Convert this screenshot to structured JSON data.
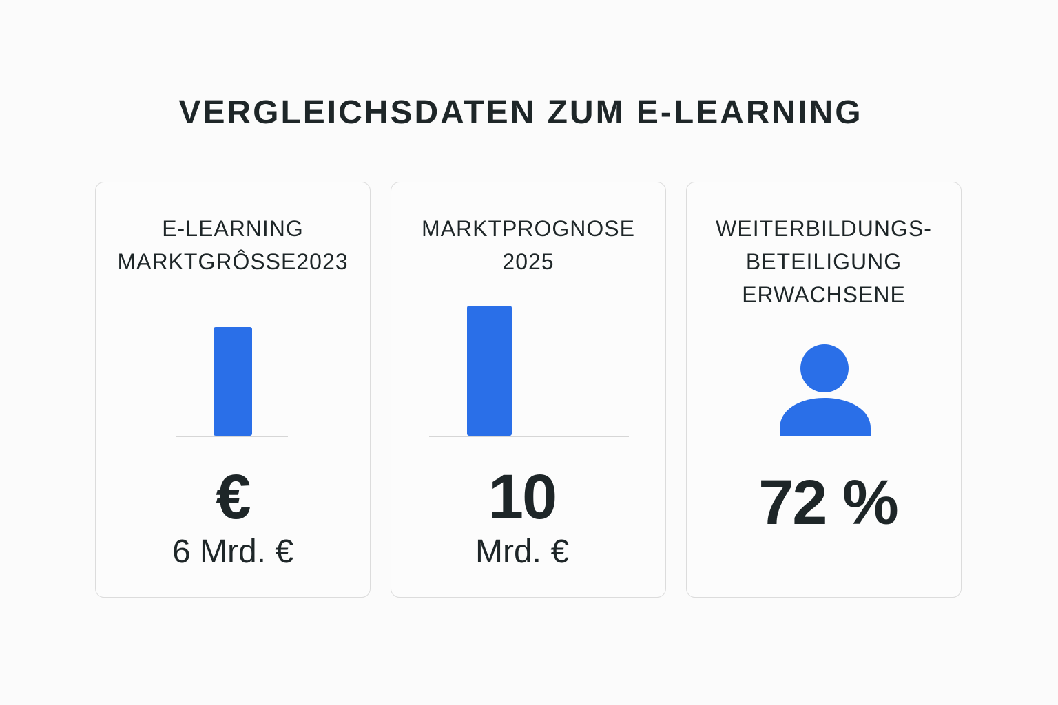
{
  "title": "VERGLEICHSDATEN ZUM E-LEARNING",
  "colors": {
    "accent": "#2a6fe8",
    "text": "#1e2628",
    "background": "#fbfbfb"
  },
  "cards": [
    {
      "title_lines": [
        "E-LEARNING",
        "MARKTGRÔSSE2023"
      ],
      "icon": "euro-icon",
      "big": "€",
      "sub": "6 Mrd. €"
    },
    {
      "title_lines": [
        "MARKTPROGNOSE",
        "2025"
      ],
      "big": "10",
      "sub": "Mrd. €"
    },
    {
      "title_lines": [
        "WEITERBILDUNGS-",
        "BETEILIGUNG",
        "ERWACHSENE"
      ],
      "icon": "person-icon",
      "big": "72 %"
    }
  ],
  "chart_data": {
    "type": "bar",
    "categories": [
      "E-Learning Marktgrösse 2023",
      "Marktprognose 2025"
    ],
    "values": [
      6,
      10
    ],
    "unit": "Mrd. €"
  }
}
